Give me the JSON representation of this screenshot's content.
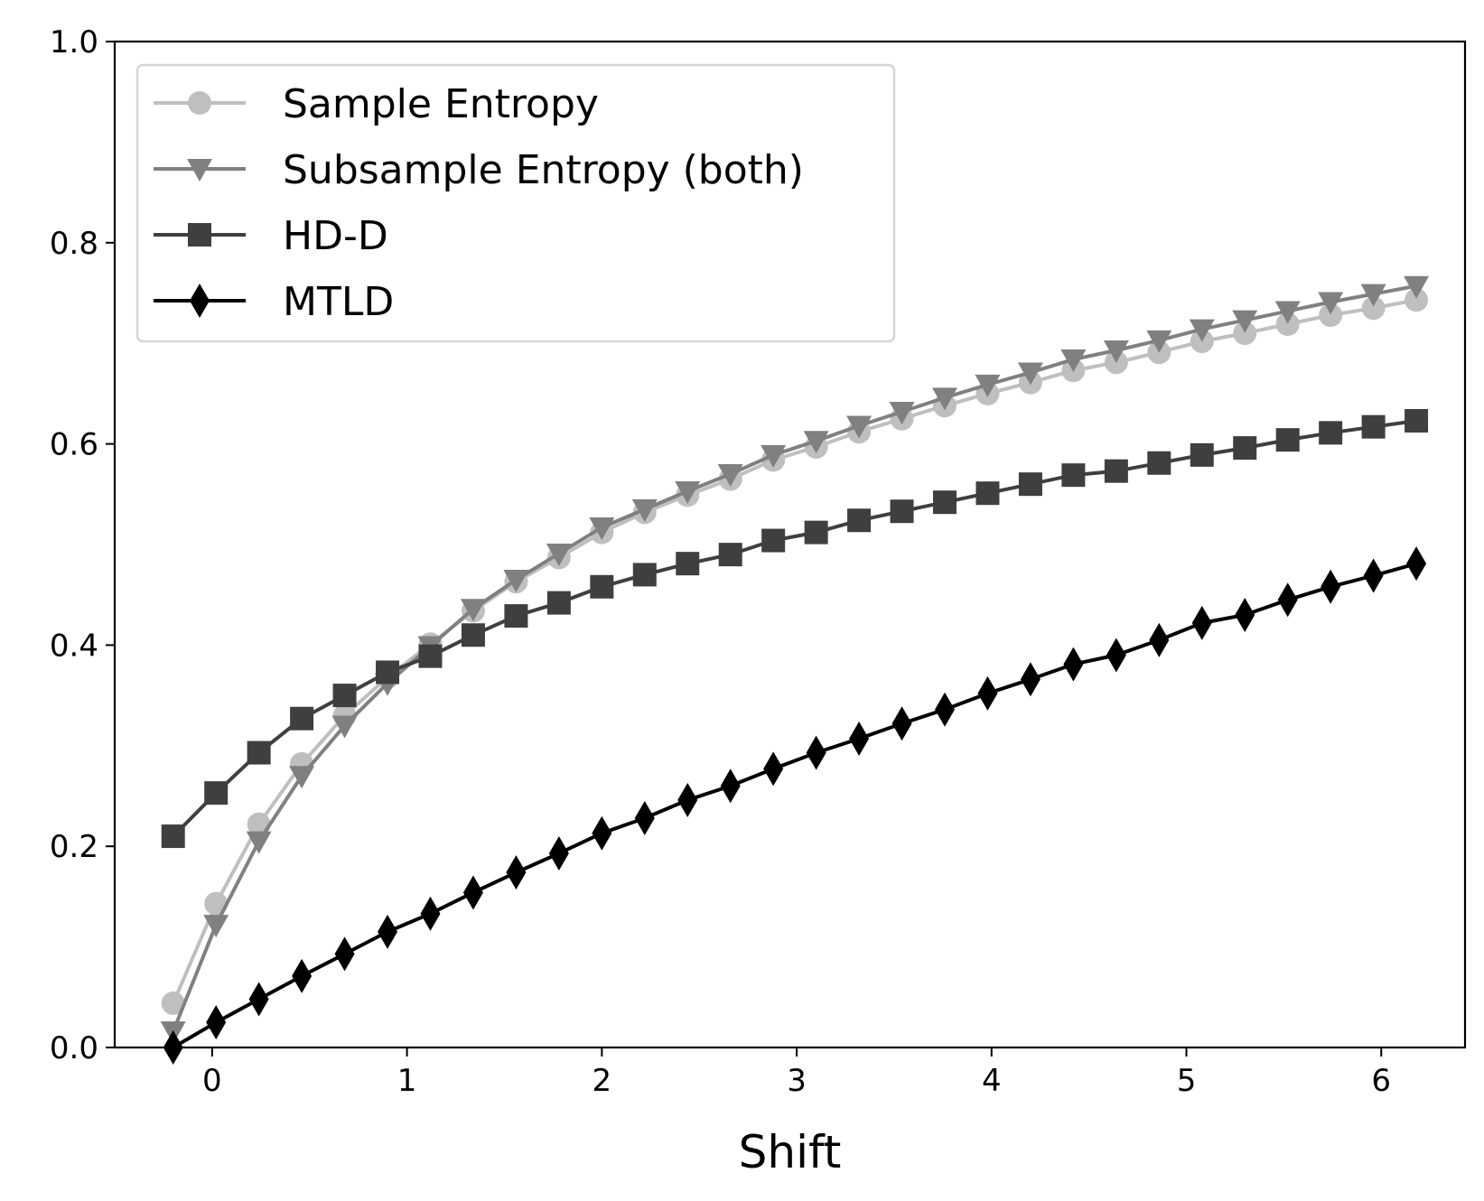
{
  "chart_data": {
    "type": "line",
    "title": "",
    "xlabel": "Shift",
    "ylabel": "",
    "xlim": [
      -0.5,
      6.43
    ],
    "ylim": [
      0,
      1.0
    ],
    "xticks": [
      0,
      1,
      2,
      3,
      4,
      5,
      6
    ],
    "xtick_labels": [
      "0",
      "1",
      "2",
      "3",
      "4",
      "5",
      "6"
    ],
    "yticks": [
      0,
      0.2,
      0.4,
      0.6,
      0.8,
      1.0
    ],
    "ytick_labels": [
      "0.0",
      "0.2",
      "0.4",
      "0.6",
      "0.8",
      "1.0"
    ],
    "grid": false,
    "legend_position": "upper-left",
    "x": [
      -0.2,
      0.02,
      0.24,
      0.46,
      0.68,
      0.9,
      1.12,
      1.34,
      1.56,
      1.78,
      2.0,
      2.22,
      2.44,
      2.66,
      2.88,
      3.1,
      3.32,
      3.54,
      3.76,
      3.98,
      4.2,
      4.42,
      4.64,
      4.86,
      5.08,
      5.3,
      5.52,
      5.74,
      5.96,
      6.18
    ],
    "series": [
      {
        "name": "Sample Entropy",
        "color": "#bfbfbf",
        "marker": "circle",
        "values": [
          0.044,
          0.143,
          0.222,
          0.282,
          0.33,
          0.368,
          0.401,
          0.434,
          0.463,
          0.487,
          0.512,
          0.532,
          0.549,
          0.565,
          0.584,
          0.597,
          0.612,
          0.625,
          0.638,
          0.65,
          0.661,
          0.673,
          0.681,
          0.691,
          0.702,
          0.71,
          0.719,
          0.728,
          0.735,
          0.743
        ]
      },
      {
        "name": "Subsample Entropy (both)",
        "color": "#808080",
        "marker": "triangle-down",
        "values": [
          0.016,
          0.122,
          0.205,
          0.27,
          0.32,
          0.362,
          0.399,
          0.436,
          0.465,
          0.491,
          0.517,
          0.535,
          0.553,
          0.57,
          0.589,
          0.603,
          0.618,
          0.632,
          0.646,
          0.659,
          0.671,
          0.684,
          0.693,
          0.703,
          0.714,
          0.723,
          0.732,
          0.741,
          0.749,
          0.757
        ]
      },
      {
        "name": "HD-D",
        "color": "#3f3f3f",
        "marker": "square",
        "values": [
          0.21,
          0.253,
          0.293,
          0.327,
          0.35,
          0.373,
          0.389,
          0.41,
          0.429,
          0.442,
          0.458,
          0.47,
          0.481,
          0.49,
          0.504,
          0.512,
          0.524,
          0.533,
          0.542,
          0.551,
          0.56,
          0.569,
          0.573,
          0.581,
          0.589,
          0.596,
          0.604,
          0.611,
          0.617,
          0.623
        ]
      },
      {
        "name": "MTLD",
        "color": "#000000",
        "marker": "diamond",
        "values": [
          0.0,
          0.025,
          0.048,
          0.071,
          0.093,
          0.115,
          0.133,
          0.154,
          0.174,
          0.193,
          0.213,
          0.228,
          0.246,
          0.26,
          0.277,
          0.293,
          0.307,
          0.322,
          0.336,
          0.352,
          0.366,
          0.381,
          0.39,
          0.405,
          0.422,
          0.43,
          0.445,
          0.458,
          0.469,
          0.481
        ]
      }
    ]
  }
}
